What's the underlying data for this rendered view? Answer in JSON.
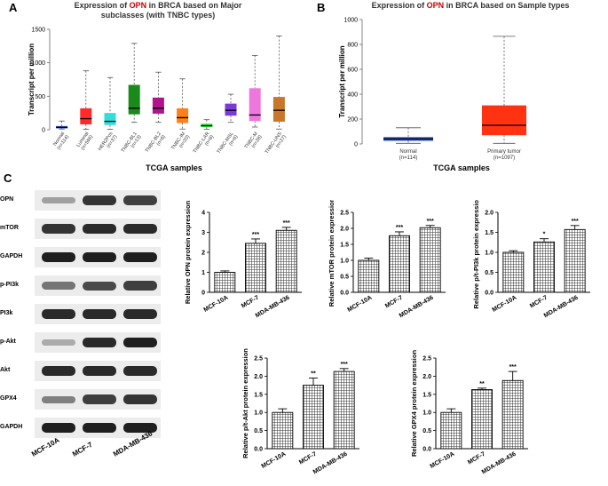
{
  "panels": {
    "a": "A",
    "b": "B",
    "c": "C"
  },
  "panel_a": {
    "title_prefix": "Expression of",
    "gene": "OPN",
    "title_suffix": "in BRCA based on Major",
    "title_line2": "subclasses (with TNBC types)",
    "ylabel": "Transcript per million",
    "xlabel": "TCGA samples",
    "yticks": [
      "0",
      "500",
      "1000",
      "1500"
    ],
    "groups": [
      {
        "label": "Normal",
        "n": "(n=114)",
        "color": "#2b55c9",
        "min": 10,
        "q1": 20,
        "median": 35,
        "q3": 55,
        "max": 130
      },
      {
        "label": "Luminal",
        "n": "(n=566)",
        "color": "#ff2b2b",
        "min": 5,
        "q1": 80,
        "median": 165,
        "q3": 320,
        "max": 880
      },
      {
        "label": "HER2Pos",
        "n": "(n=37)",
        "color": "#33dddd",
        "min": 5,
        "q1": 70,
        "median": 125,
        "q3": 250,
        "max": 780
      },
      {
        "label": "TNBC-BL1",
        "n": "(n=13)",
        "color": "#1a8a1a",
        "min": 110,
        "q1": 230,
        "median": 320,
        "q3": 670,
        "max": 1290
      },
      {
        "label": "TNBC-BL2",
        "n": "(n=8)",
        "color": "#b0148c",
        "min": 110,
        "q1": 240,
        "median": 320,
        "q3": 480,
        "max": 860
      },
      {
        "label": "TNBC-IM",
        "n": "(n=20)",
        "color": "#ff7f1a",
        "min": 10,
        "q1": 100,
        "median": 180,
        "q3": 320,
        "max": 760
      },
      {
        "label": "TNBC-LAR",
        "n": "(n=8)",
        "color": "#33ee33",
        "min": 5,
        "q1": 40,
        "median": 60,
        "q3": 90,
        "max": 150
      },
      {
        "label": "TNBC-MSL",
        "n": "(n=6)",
        "color": "#7a3ad8",
        "min": 110,
        "q1": 210,
        "median": 290,
        "q3": 390,
        "max": 530
      },
      {
        "label": "TNBC-M",
        "n": "(n=28)",
        "color": "#ee77dd",
        "min": 40,
        "q1": 130,
        "median": 220,
        "q3": 620,
        "max": 1110
      },
      {
        "label": "TNBC-UNS",
        "n": "(n=27)",
        "color": "#c8762a",
        "min": 10,
        "q1": 120,
        "median": 290,
        "q3": 490,
        "max": 1400
      }
    ]
  },
  "panel_b": {
    "title_prefix": "Expression of",
    "gene": "OPN",
    "title_suffix": "in BRCA based on Sample types",
    "ylabel": "Transcript per million",
    "xlabel": "TCGA samples",
    "yticks": [
      "0",
      "200",
      "400",
      "600",
      "800",
      "1000"
    ],
    "groups": [
      {
        "label": "Normal",
        "n": "(n=114)",
        "color": "#2f56c4",
        "min": 5,
        "q1": 25,
        "median": 40,
        "q3": 55,
        "max": 130
      },
      {
        "label": "Primary tumor",
        "n": "(n=1097)",
        "color": "#ff3311",
        "min": 5,
        "q1": 70,
        "median": 150,
        "q3": 310,
        "max": 865
      }
    ]
  },
  "western_blot": {
    "labels": [
      "OPN",
      "mTOR",
      "GAPDH",
      "p-PI3k",
      "PI3k",
      "p-Akt",
      "Akt",
      "GPX4",
      "GAPDH"
    ],
    "intensity": [
      [
        0.35,
        0.85,
        0.8
      ],
      [
        0.85,
        0.9,
        0.9
      ],
      [
        0.95,
        0.95,
        0.95
      ],
      [
        0.55,
        0.75,
        0.8
      ],
      [
        0.9,
        0.9,
        0.9
      ],
      [
        0.3,
        0.9,
        0.95
      ],
      [
        0.9,
        0.9,
        0.9
      ],
      [
        0.5,
        0.8,
        0.85
      ],
      [
        0.95,
        0.95,
        0.95
      ]
    ],
    "lanes": [
      "MCF-10A",
      "MCF-7",
      "MDA-MB-436"
    ]
  },
  "chart_data": [
    {
      "type": "bar",
      "title": "",
      "categories": [
        "MCF-10A",
        "MCF-7",
        "MDA-MB-436"
      ],
      "values": [
        1.0,
        2.45,
        3.1
      ],
      "errors": [
        0.07,
        0.22,
        0.15
      ],
      "significance": [
        "",
        "***",
        "***"
      ],
      "ylabel": "Relative OPN protein expression",
      "ylim": [
        0,
        4
      ],
      "yticks": [
        "0",
        "1",
        "2",
        "3",
        "4"
      ]
    },
    {
      "type": "bar",
      "title": "",
      "categories": [
        "MCF-10A",
        "MCF-7",
        "MDA-MB-436"
      ],
      "values": [
        1.0,
        1.77,
        2.02
      ],
      "errors": [
        0.07,
        0.12,
        0.07
      ],
      "significance": [
        "",
        "***",
        "***"
      ],
      "ylabel": "Relative mTOR protein expression",
      "ylim": [
        0,
        2.5
      ],
      "yticks": [
        "0.0",
        "0.5",
        "1.0",
        "1.5",
        "2.0",
        "2.5"
      ]
    },
    {
      "type": "bar",
      "title": "",
      "categories": [
        "MCF-10A",
        "MCF-7",
        "MDA-MB-436"
      ],
      "values": [
        1.0,
        1.26,
        1.57
      ],
      "errors": [
        0.04,
        0.08,
        0.1
      ],
      "significance": [
        "",
        "*",
        "***"
      ],
      "ylabel": "Relative p/t-PI3k protein expression",
      "ylim": [
        0,
        2.0
      ],
      "yticks": [
        "0.0",
        "0.5",
        "1.0",
        "1.5",
        "2.0"
      ]
    },
    {
      "type": "bar",
      "title": "",
      "categories": [
        "MCF-10A",
        "MCF-7",
        "MDA-MB-436"
      ],
      "values": [
        1.0,
        1.75,
        2.13
      ],
      "errors": [
        0.1,
        0.2,
        0.08
      ],
      "significance": [
        "",
        "**",
        "***"
      ],
      "ylabel": "Relative p/t-Akt protein expression",
      "ylim": [
        0,
        2.5
      ],
      "yticks": [
        "0.0",
        "0.5",
        "1.0",
        "1.5",
        "2.0",
        "2.5"
      ]
    },
    {
      "type": "bar",
      "title": "",
      "categories": [
        "MCF-10A",
        "MCF-7",
        "MDA-MB-436"
      ],
      "values": [
        1.0,
        1.63,
        1.88
      ],
      "errors": [
        0.1,
        0.04,
        0.25
      ],
      "significance": [
        "",
        "**",
        "***"
      ],
      "ylabel": "Relative GPX4 protein expression",
      "ylim": [
        0,
        2.5
      ],
      "yticks": [
        "0.0",
        "0.5",
        "1.0",
        "1.5",
        "2.0",
        "2.5"
      ]
    }
  ]
}
